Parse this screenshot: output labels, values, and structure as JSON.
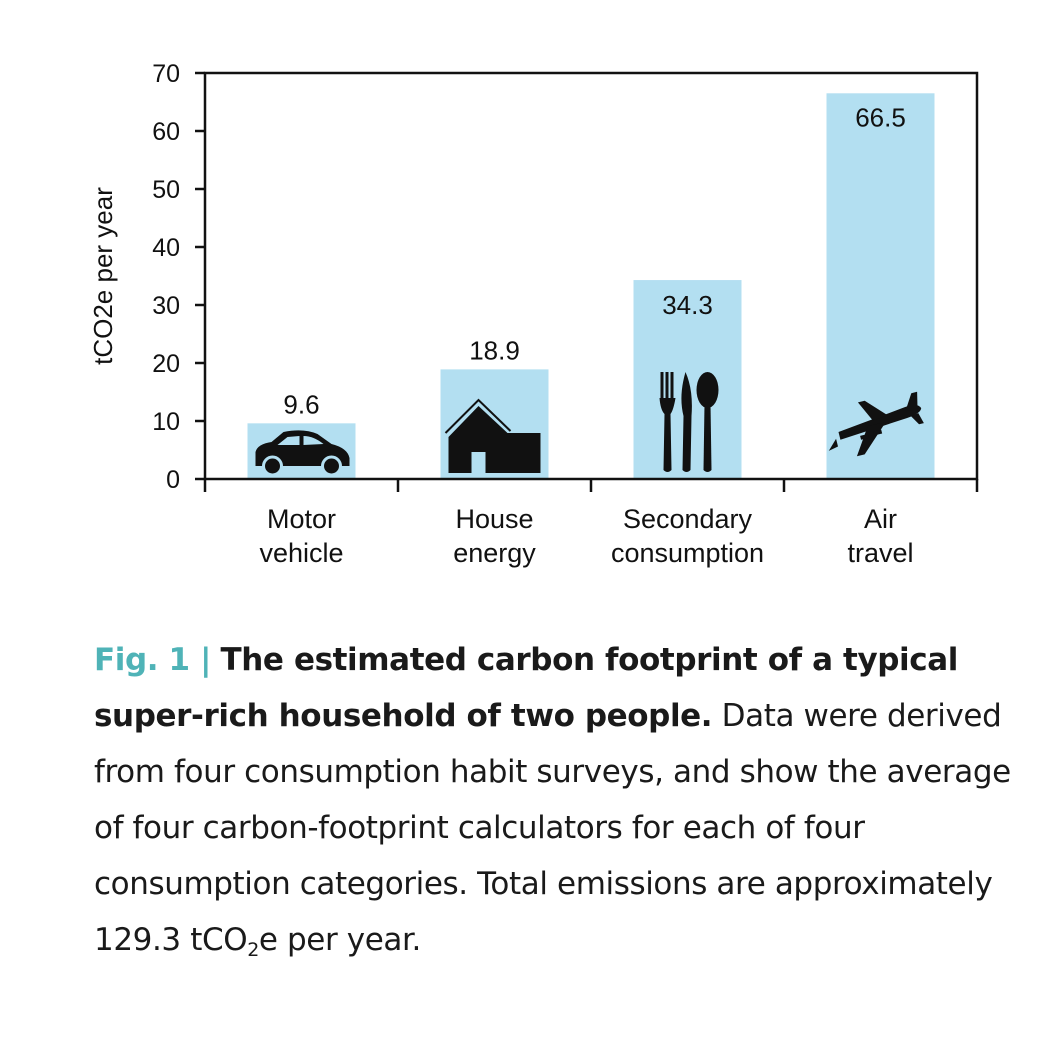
{
  "chart_data": {
    "type": "bar",
    "categories": [
      "Motor\nvehicle",
      "House\nenergy",
      "Secondary\nconsumption",
      "Air\ntravel"
    ],
    "values": [
      9.6,
      18.9,
      34.3,
      66.5
    ],
    "value_labels": [
      "9.6",
      "18.9",
      "34.3",
      "66.5"
    ],
    "icons": [
      "car-icon",
      "house-icon",
      "cutlery-icon",
      "airplane-icon"
    ],
    "ylabel": "tCO2e per year",
    "xlabel": "",
    "ylim": [
      0,
      70
    ],
    "yticks": [
      0,
      10,
      20,
      30,
      40,
      50,
      60,
      70
    ],
    "grid": false,
    "bar_color": "#b3dff1"
  },
  "caption": {
    "fig_label": "Fig. 1 |",
    "title": "The estimated carbon footprint of a typical super-rich household of two people.",
    "body": "Data were derived from four consumption habit surveys, and show the average of four carbon-footprint calculators for each of four consumption categories. Total emissions are approximately 129.3 tCO",
    "body_sub": "2",
    "body_end": "e per year.",
    "accent_color": "#4fb3b7"
  }
}
